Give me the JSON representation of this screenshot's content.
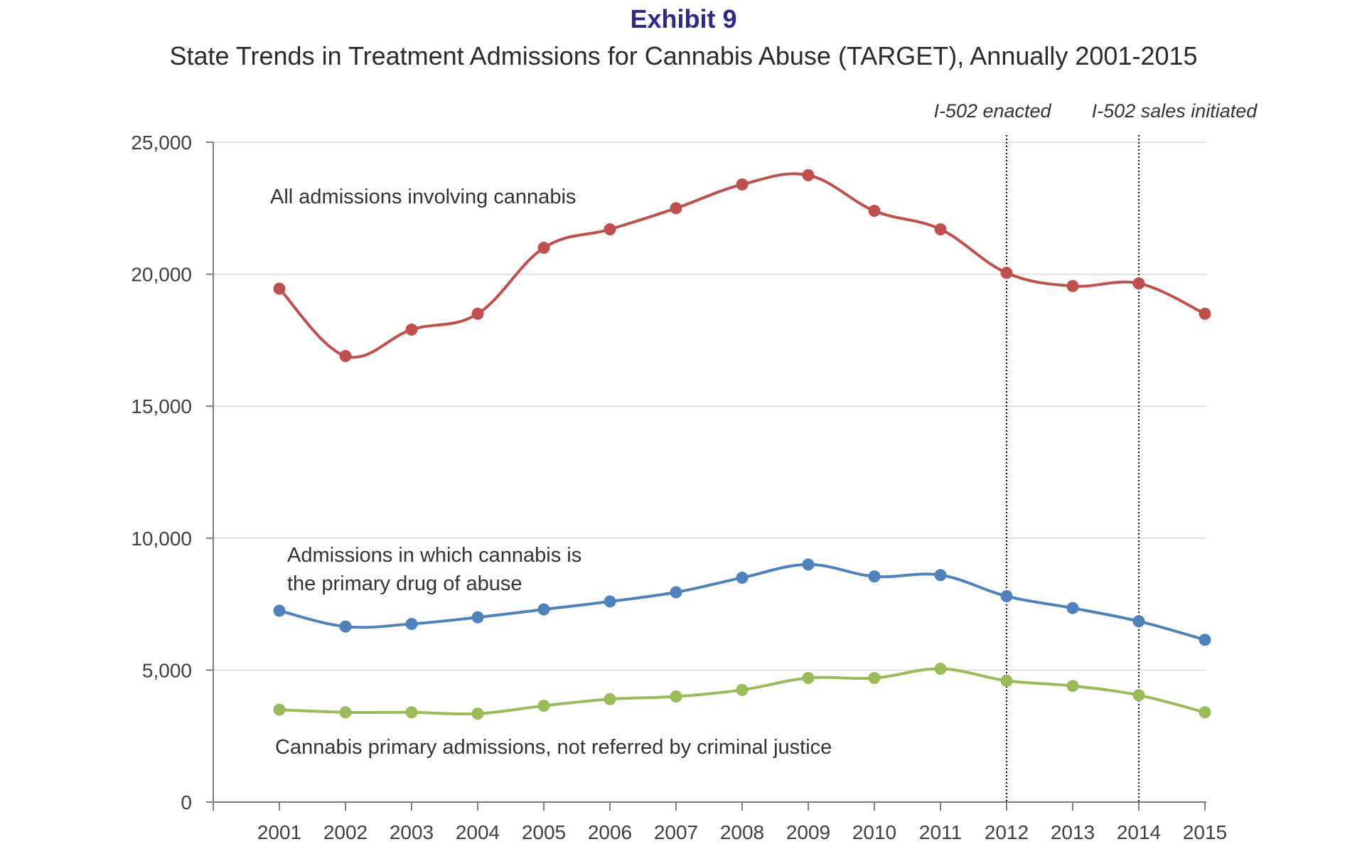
{
  "header": {
    "exhibit": "Exhibit 9",
    "title": "State Trends in Treatment Admissions for Cannabis Abuse (TARGET), Annually 2001-2015"
  },
  "chart_data": {
    "type": "line",
    "title": "State Trends in Treatment Admissions for Cannabis Abuse (TARGET), Annually 2001-2015",
    "x": [
      2001,
      2002,
      2003,
      2004,
      2005,
      2006,
      2007,
      2008,
      2009,
      2010,
      2011,
      2012,
      2013,
      2014,
      2015
    ],
    "y_ticks": [
      "0",
      "5,000",
      "10,000",
      "15,000",
      "20,000",
      "25,000"
    ],
    "ylim": [
      0,
      25000
    ],
    "grid": true,
    "series": [
      {
        "name": "All admissions involving cannabis",
        "color": "#c0504d",
        "values": [
          19450,
          16900,
          17900,
          18500,
          21000,
          21700,
          22500,
          23400,
          23750,
          22400,
          21700,
          20050,
          19550,
          19650,
          18500
        ]
      },
      {
        "name": "Admissions in which cannabis is the primary drug of abuse",
        "label_lines": [
          "Admissions in which cannabis is",
          "the primary drug of abuse"
        ],
        "color": "#4f81bd",
        "values": [
          7250,
          6650,
          6750,
          7000,
          7300,
          7600,
          7950,
          8500,
          9000,
          8550,
          8600,
          7800,
          7350,
          6850,
          6150
        ]
      },
      {
        "name": "Cannabis primary admissions, not referred by criminal justice",
        "color": "#9bbb59",
        "values": [
          3500,
          3400,
          3400,
          3350,
          3650,
          3900,
          4000,
          4250,
          4700,
          4700,
          5050,
          4600,
          4400,
          4050,
          3400
        ]
      }
    ],
    "annotations": [
      {
        "year": 2012,
        "label": "I-502 enacted"
      },
      {
        "year": 2014,
        "label": "I-502 sales initiated"
      }
    ]
  }
}
